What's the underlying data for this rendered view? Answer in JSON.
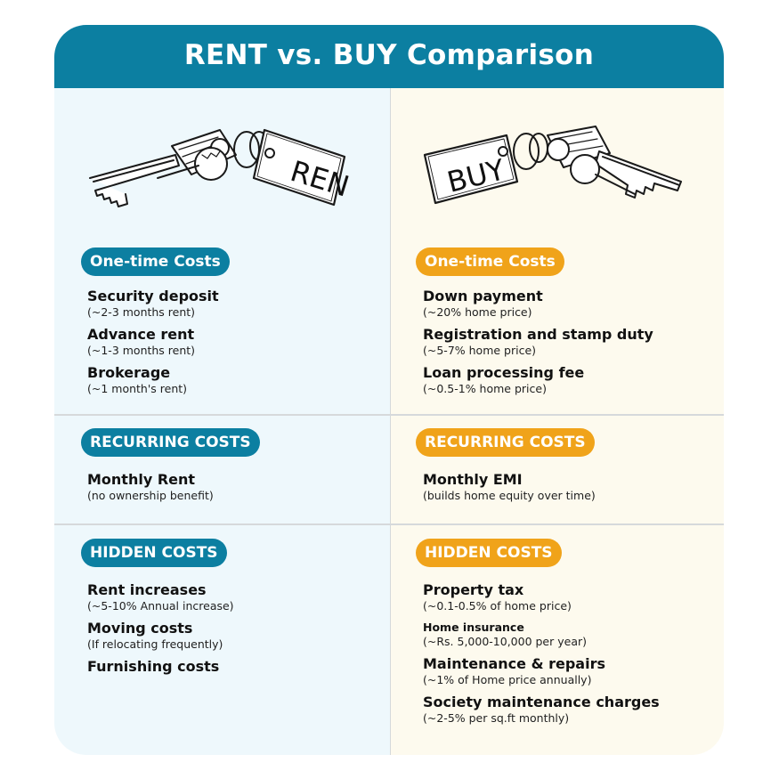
{
  "header": {
    "title": "RENT vs. BUY Comparison"
  },
  "colors": {
    "header_bg": "#0c7fa1",
    "rent_bg": "#eef8fc",
    "buy_bg": "#fdfaee",
    "rent_pill": "#0c7fa1",
    "buy_pill": "#f0a31a"
  },
  "rent": {
    "tag_label": "RENT",
    "icon": "keys-with-tag-icon",
    "one_time": {
      "heading": "One-time Costs",
      "items": [
        {
          "title": "Security deposit",
          "note": "(~2-3 months rent)"
        },
        {
          "title": "Advance rent",
          "note": "(~1-3 months rent)"
        },
        {
          "title": "Brokerage",
          "note": "(~1 month's rent)"
        }
      ]
    },
    "recurring": {
      "heading": "RECURRING COSTS",
      "items": [
        {
          "title": "Monthly Rent",
          "note": "(no ownership benefit)"
        }
      ]
    },
    "hidden": {
      "heading": "HIDDEN COSTS",
      "items": [
        {
          "title": "Rent increases",
          "note": "(~5-10% Annual increase)"
        },
        {
          "title": "Moving costs",
          "note": "(If relocating frequently)"
        },
        {
          "title": "Furnishing costs"
        }
      ]
    }
  },
  "buy": {
    "tag_label": "BUY",
    "icon": "keys-with-tag-icon",
    "one_time": {
      "heading": "One-time Costs",
      "items": [
        {
          "title": "Down payment",
          "note": "(~20% home price)"
        },
        {
          "title": "Registration and stamp duty",
          "note": "(~5-7% home price)"
        },
        {
          "title": "Loan processing fee",
          "note": "(~0.5-1% home price)"
        }
      ]
    },
    "recurring": {
      "heading": "RECURRING COSTS",
      "items": [
        {
          "title": "Monthly EMI",
          "note": "(builds home equity over time)"
        }
      ]
    },
    "hidden": {
      "heading": "HIDDEN COSTS",
      "items": [
        {
          "title": "Property tax",
          "note": "(~0.1-0.5% of home price)"
        },
        {
          "title": "Home insurance",
          "note": "(~Rs. 5,000-10,000 per year)"
        },
        {
          "title": "Maintenance & repairs",
          "note": "(~1% of Home price annually)"
        },
        {
          "title": "Society maintenance charges",
          "note": "(~2-5% per sq.ft monthly)"
        }
      ]
    }
  }
}
